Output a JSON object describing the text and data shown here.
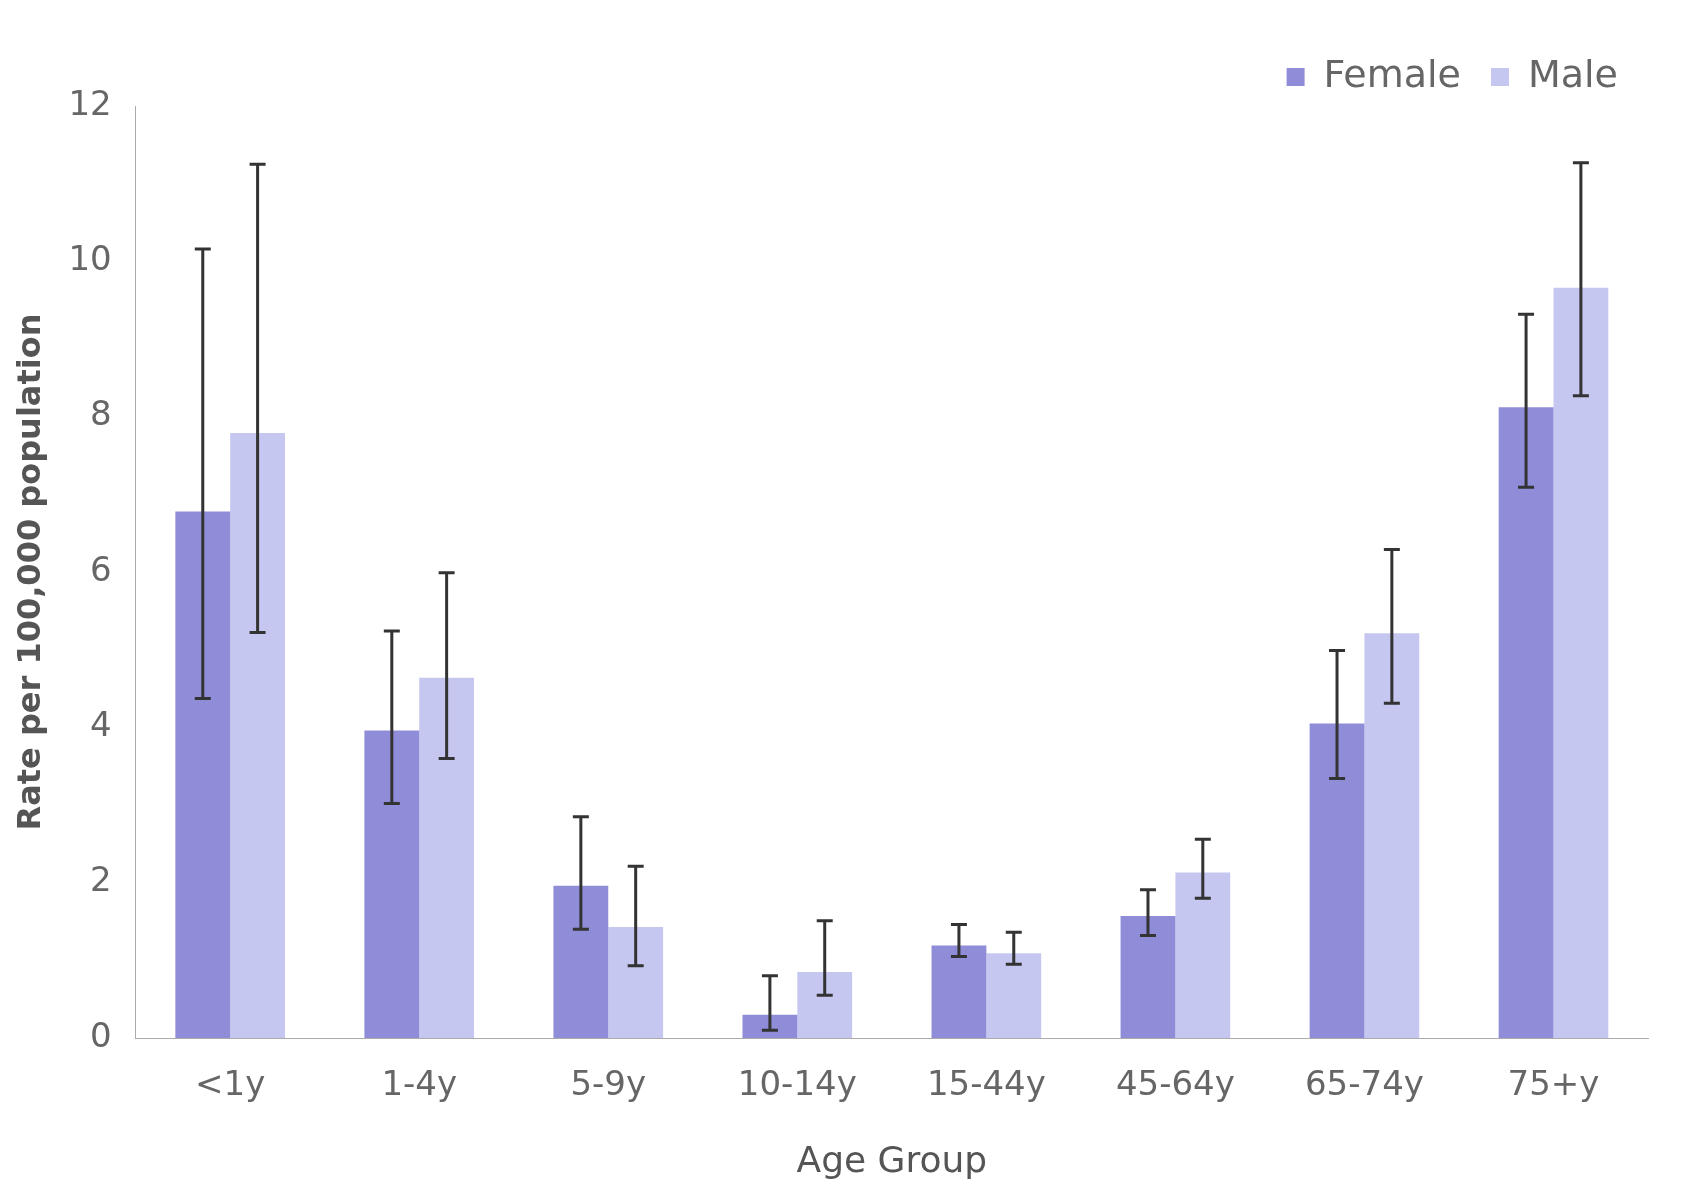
{
  "chart_data": {
    "type": "bar",
    "xlabel": "Age Group",
    "ylabel": "Rate per 100,000 population",
    "categories": [
      "<1y",
      "1-4y",
      "5-9y",
      "10-14y",
      "15-44y",
      "45-64y",
      "65-74y",
      "75+y"
    ],
    "series": [
      {
        "name": "Female",
        "color": "#8f8cd8",
        "values": [
          6.78,
          3.96,
          1.96,
          0.3,
          1.19,
          1.57,
          4.05,
          8.12
        ],
        "errors": [
          [
            4.37,
            10.16
          ],
          [
            3.02,
            5.24
          ],
          [
            1.4,
            2.85
          ],
          [
            0.1,
            0.8
          ],
          [
            1.05,
            1.46
          ],
          [
            1.32,
            1.91
          ],
          [
            3.34,
            4.99
          ],
          [
            7.09,
            9.32
          ]
        ]
      },
      {
        "name": "Male",
        "color": "#c5c7f0",
        "values": [
          7.79,
          4.64,
          1.43,
          0.85,
          1.09,
          2.13,
          5.21,
          9.66
        ],
        "errors": [
          [
            5.22,
            11.25
          ],
          [
            3.6,
            5.99
          ],
          [
            0.93,
            2.21
          ],
          [
            0.55,
            1.51
          ],
          [
            0.95,
            1.36
          ],
          [
            1.8,
            2.56
          ],
          [
            4.31,
            6.29
          ],
          [
            8.27,
            11.27
          ]
        ]
      }
    ],
    "ylim": [
      0,
      12
    ],
    "yticks": [
      0,
      2,
      4,
      6,
      8,
      10,
      12
    ],
    "grid": false,
    "legend": "top right"
  }
}
